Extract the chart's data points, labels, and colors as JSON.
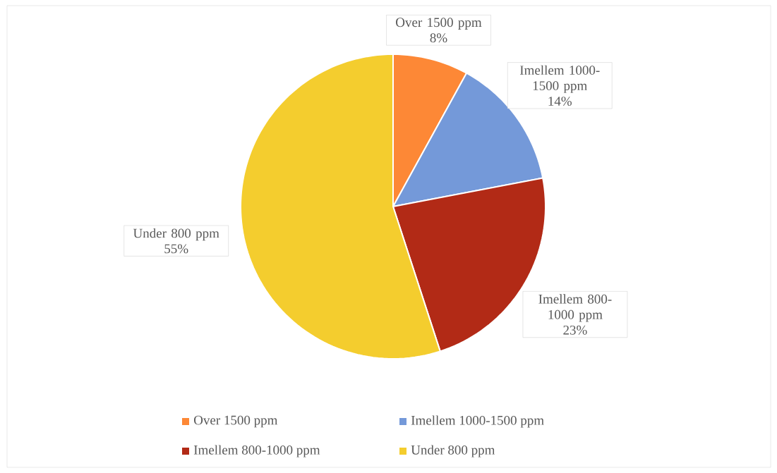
{
  "chart_data": {
    "type": "pie",
    "categories": [
      "Over 1500 ppm",
      "Imellem 1000-1500 ppm",
      "Imellem 800-1000 ppm",
      "Under 800 ppm"
    ],
    "values": [
      8,
      14,
      23,
      55
    ],
    "value_labels": [
      "8%",
      "14%",
      "23%",
      "55%"
    ],
    "colors": [
      "#fd8836",
      "#7499d9",
      "#b22a16",
      "#f4cd2e"
    ],
    "legend": "bottom"
  }
}
